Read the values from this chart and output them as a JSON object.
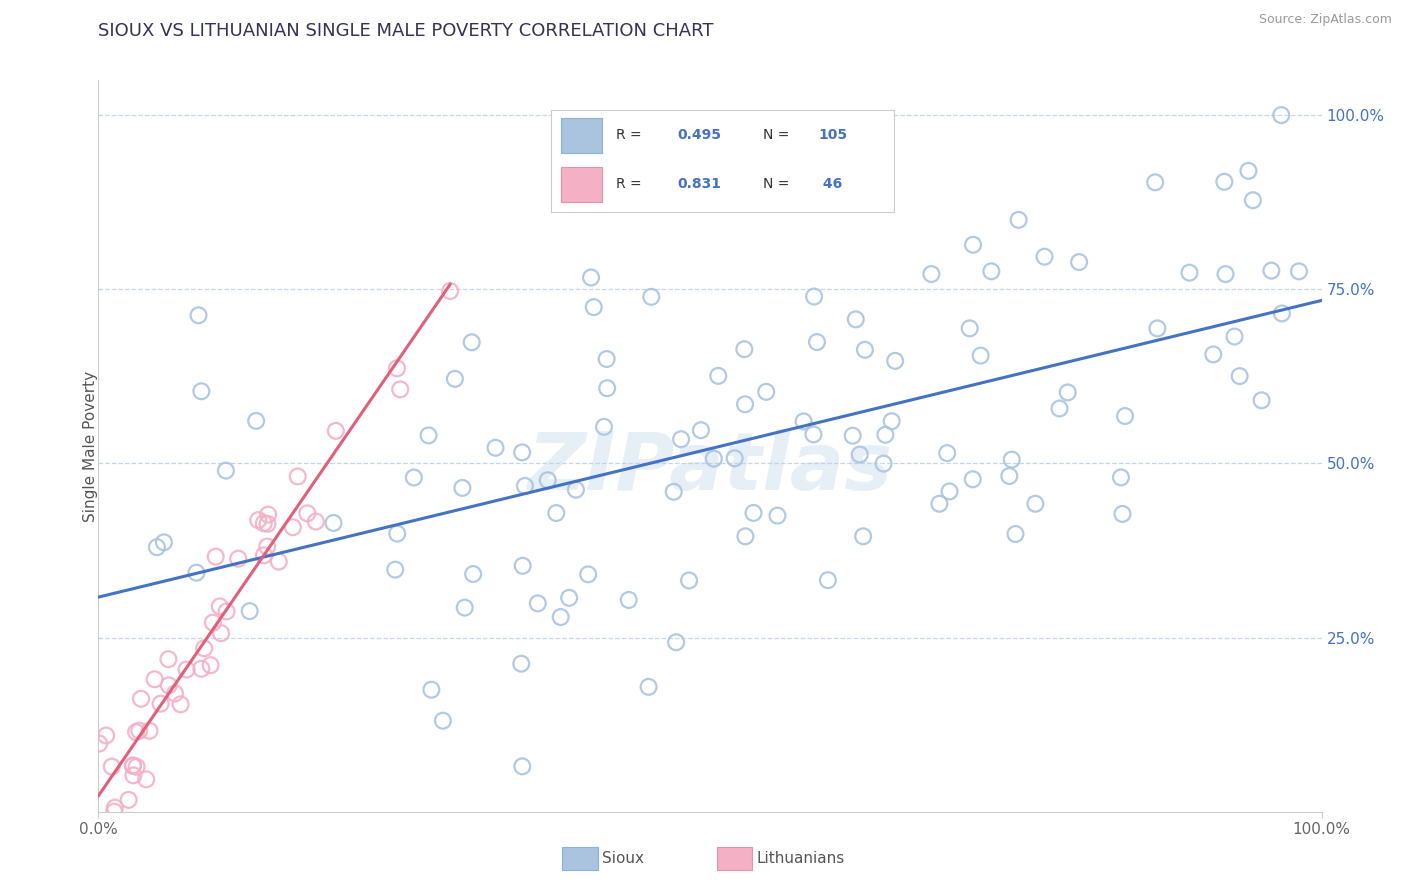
{
  "title": "SIOUX VS LITHUANIAN SINGLE MALE POVERTY CORRELATION CHART",
  "source": "Source: ZipAtlas.com",
  "ylabel": "Single Male Poverty",
  "xlim": [
    0,
    1
  ],
  "ylim": [
    0,
    1
  ],
  "xtick_labels": [
    "0.0%",
    "100.0%"
  ],
  "ytick_labels": [
    "25.0%",
    "50.0%",
    "75.0%",
    "100.0%"
  ],
  "ytick_positions": [
    0.25,
    0.5,
    0.75,
    1.0
  ],
  "sioux_color": "#aac4e0",
  "sioux_edge_color": "#aac4e0",
  "sioux_line_color": "#4472c4",
  "lithuanians_color": "#f4b0c5",
  "lithuanians_edge_color": "#f4b0c5",
  "lithuanians_line_color": "#e0607a",
  "background_color": "#ffffff",
  "grid_color": "#c8d4e8",
  "watermark": "ZIPatlas",
  "legend_r1": "0.495",
  "legend_n1": "105",
  "legend_r2": "0.831",
  "legend_n2": " 46"
}
